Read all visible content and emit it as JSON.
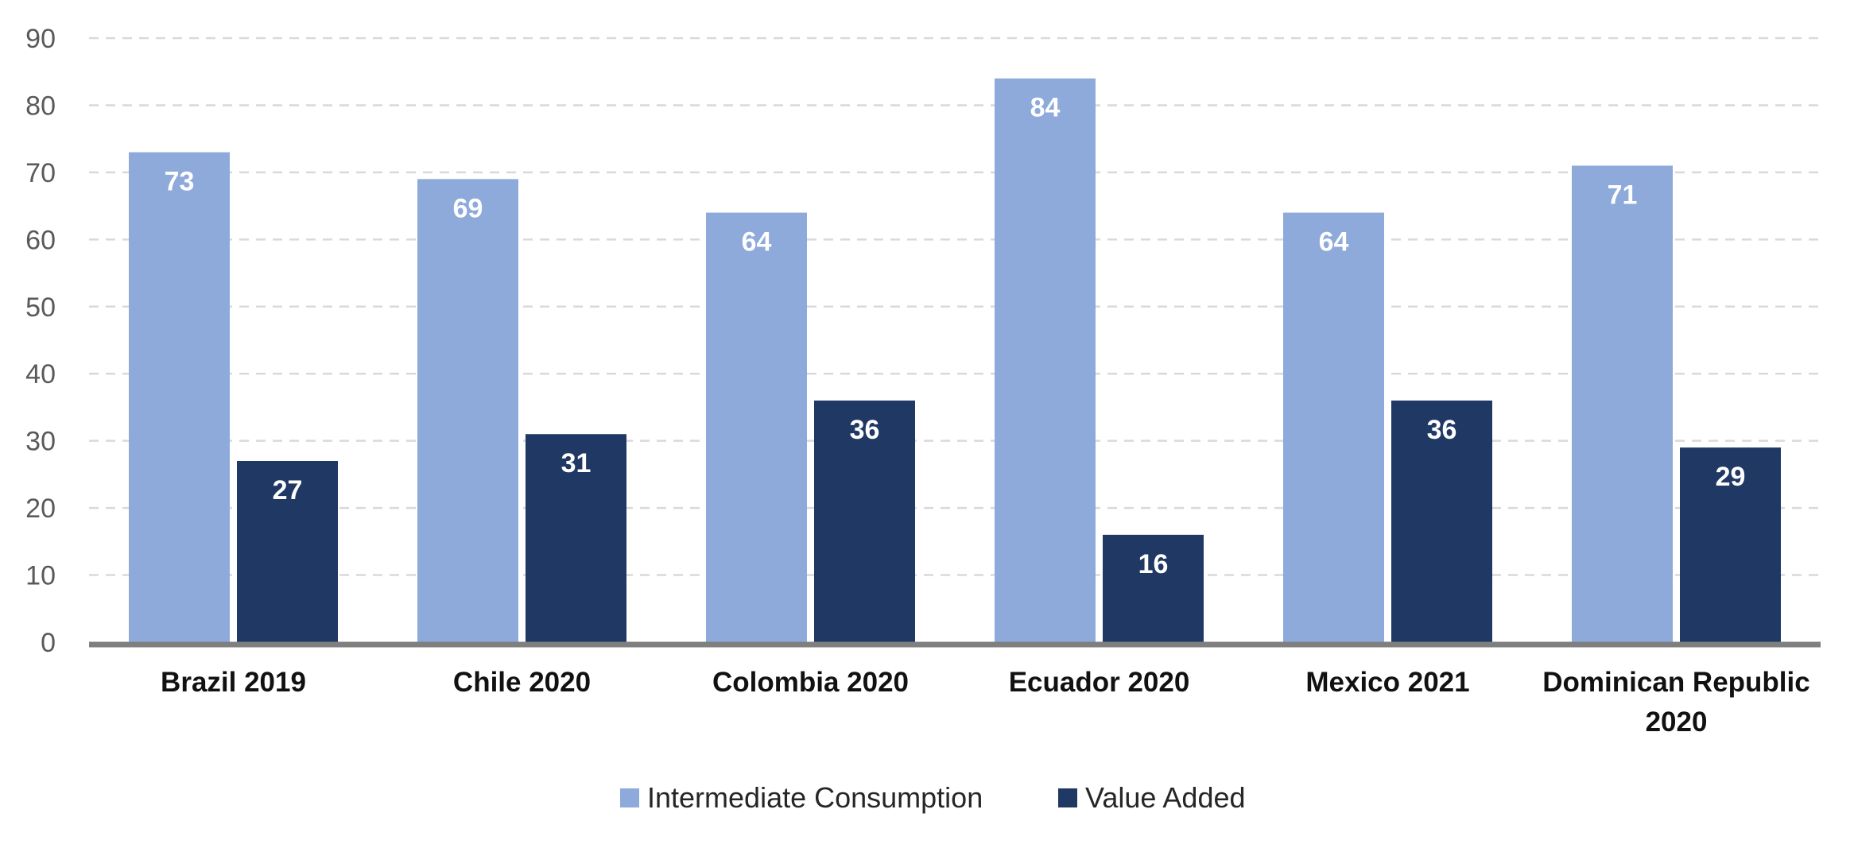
{
  "chart_data": {
    "type": "bar",
    "title": "",
    "xlabel": "",
    "ylabel": "",
    "ylim": [
      0,
      90
    ],
    "yticks": [
      "0",
      "10",
      "20",
      "30",
      "40",
      "50",
      "60",
      "70",
      "80",
      "90"
    ],
    "grid": true,
    "legend_position": "bottom",
    "categories": [
      [
        "Brazil 2019"
      ],
      [
        "Chile 2020"
      ],
      [
        "Colombia 2020"
      ],
      [
        "Ecuador 2020"
      ],
      [
        "Mexico 2021"
      ],
      [
        "Dominican Republic",
        "2020"
      ]
    ],
    "series": [
      {
        "name": "Intermediate Consumption",
        "color": "#8eaadb",
        "values": [
          73,
          69,
          64,
          84,
          64,
          71
        ],
        "labels": [
          "73",
          "69",
          "64",
          "84",
          "64",
          "71"
        ]
      },
      {
        "name": "Value Added",
        "color": "#203864",
        "values": [
          27,
          31,
          36,
          16,
          36,
          29
        ],
        "labels": [
          "27",
          "31",
          "36",
          "16",
          "36",
          "29"
        ]
      }
    ],
    "axis_color": "#7f7f7f",
    "grid_color": "#d9d9d9"
  }
}
